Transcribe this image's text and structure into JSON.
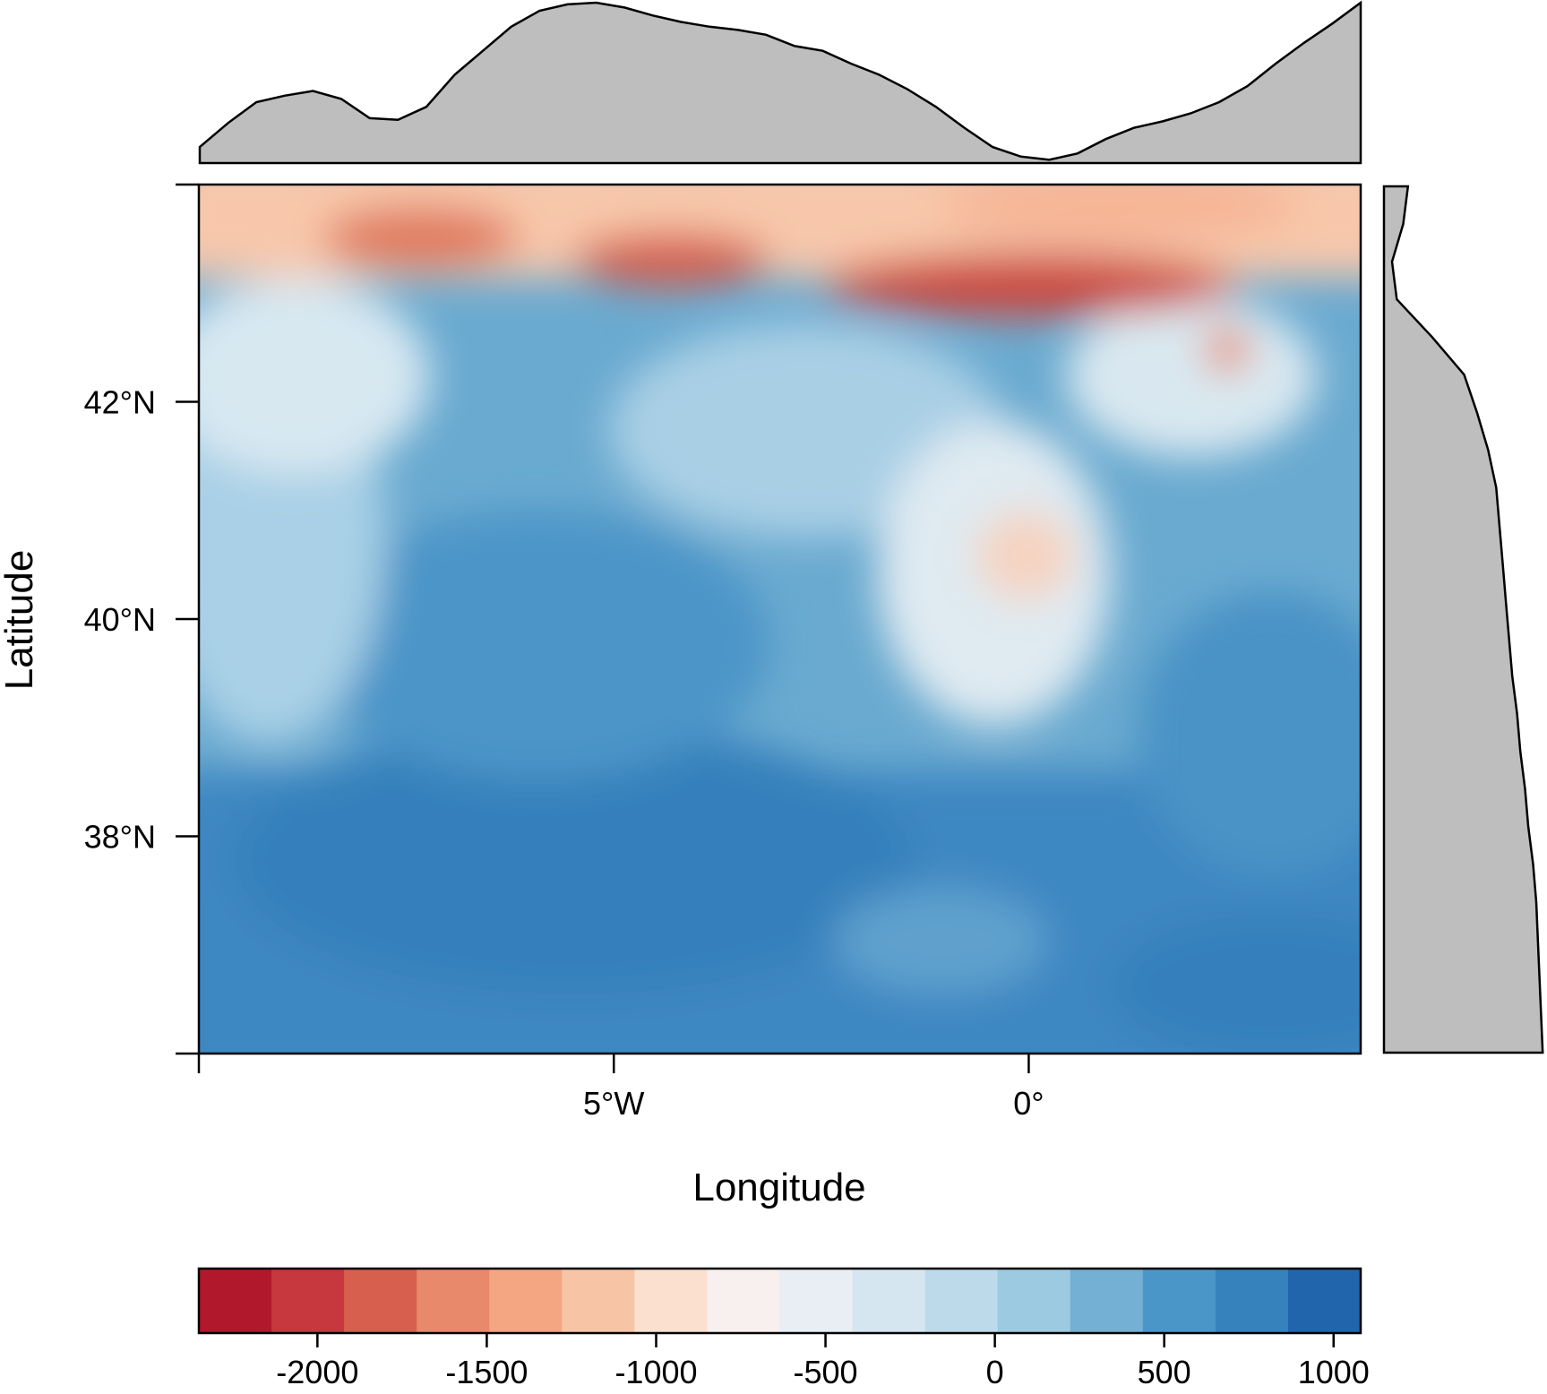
{
  "chart_data": {
    "type": "heatmap",
    "title": "",
    "xlabel": "Longitude",
    "ylabel": "Latitude",
    "x_ticks": [
      {
        "value": -10,
        "label": ""
      },
      {
        "value": -5,
        "label": "5°W"
      },
      {
        "value": 0,
        "label": "0°"
      }
    ],
    "y_ticks": [
      {
        "value": 36,
        "label": ""
      },
      {
        "value": 38,
        "label": "38°N"
      },
      {
        "value": 40,
        "label": "40°N"
      },
      {
        "value": 42,
        "label": "42°N"
      },
      {
        "value": 44,
        "label": ""
      }
    ],
    "xlim": [
      -10,
      4
    ],
    "ylim": [
      36,
      44
    ],
    "colorbar": {
      "range": [
        -2350,
        1080
      ],
      "tick_values": [
        -2000,
        -1500,
        -1000,
        -500,
        0,
        500,
        1000
      ],
      "tick_labels": [
        "-2000",
        "-1500",
        "-1000",
        "-500",
        "0",
        "500",
        "1000"
      ],
      "colors": [
        "#b2182b",
        "#c6383e",
        "#d6604d",
        "#e8896b",
        "#f4a582",
        "#f8c4a6",
        "#fbe0d0",
        "#f7f0ee",
        "#e8eef3",
        "#d5e6f0",
        "#bcdaea",
        "#9ccae0",
        "#74b0d3",
        "#4a96c8",
        "#3582bd",
        "#2166ac"
      ]
    },
    "top_marginal_profile": [
      0.1,
      0.25,
      0.38,
      0.42,
      0.45,
      0.4,
      0.28,
      0.27,
      0.35,
      0.55,
      0.7,
      0.85,
      0.95,
      0.99,
      1.0,
      0.97,
      0.92,
      0.88,
      0.85,
      0.83,
      0.8,
      0.73,
      0.7,
      0.62,
      0.55,
      0.46,
      0.35,
      0.22,
      0.1,
      0.04,
      0.02,
      0.06,
      0.15,
      0.22,
      0.26,
      0.31,
      0.38,
      0.48,
      0.62,
      0.75,
      0.87,
      1.0
    ],
    "right_marginal_profile": [
      0.15,
      0.12,
      0.05,
      0.08,
      0.3,
      0.5,
      0.58,
      0.65,
      0.7,
      0.72,
      0.74,
      0.76,
      0.78,
      0.8,
      0.83,
      0.85,
      0.88,
      0.9,
      0.93,
      0.95,
      0.96,
      0.97,
      0.98,
      0.99
    ]
  }
}
